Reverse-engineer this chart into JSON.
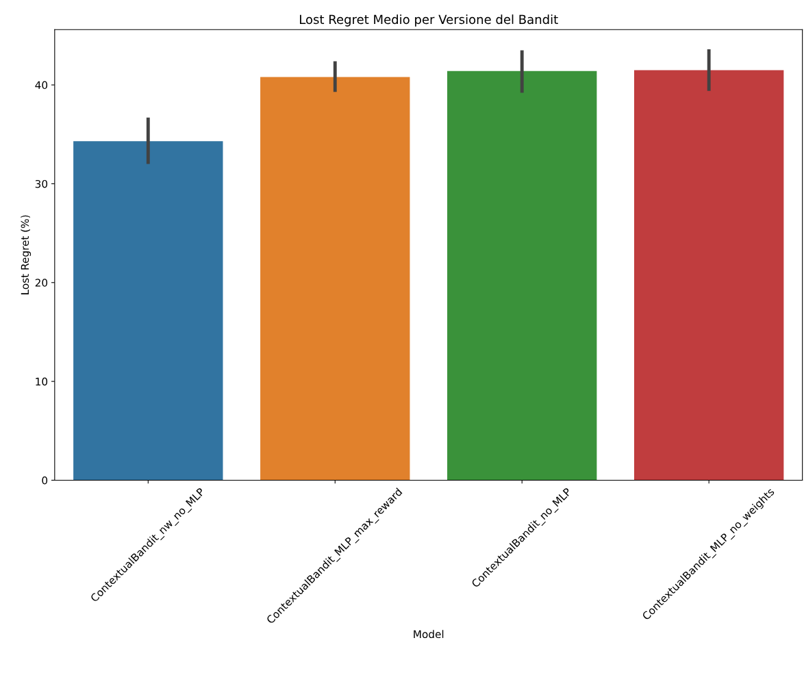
{
  "chart_data": {
    "type": "bar",
    "title": "Lost Regret Medio per Versione del Bandit",
    "xlabel": "Model",
    "ylabel": "Lost Regret (%)",
    "categories": [
      "ContextualBandit_nw_no_MLP",
      "ContextualBandit_MLP_max_reward",
      "ContextualBandit_no_MLP",
      "ContextualBandit_MLP_no_weights"
    ],
    "values": [
      34.3,
      40.8,
      41.4,
      41.5
    ],
    "colors": [
      "#3274a1",
      "#e1812c",
      "#3a923a",
      "#c03d3e"
    ],
    "errors": [
      [
        32.0,
        36.7
      ],
      [
        39.3,
        42.4
      ],
      [
        39.2,
        43.5
      ],
      [
        39.4,
        43.6
      ]
    ],
    "ylim": [
      0,
      45.6
    ],
    "yticks": [
      0,
      10,
      20,
      30,
      40
    ],
    "grid": false,
    "legend": false
  }
}
